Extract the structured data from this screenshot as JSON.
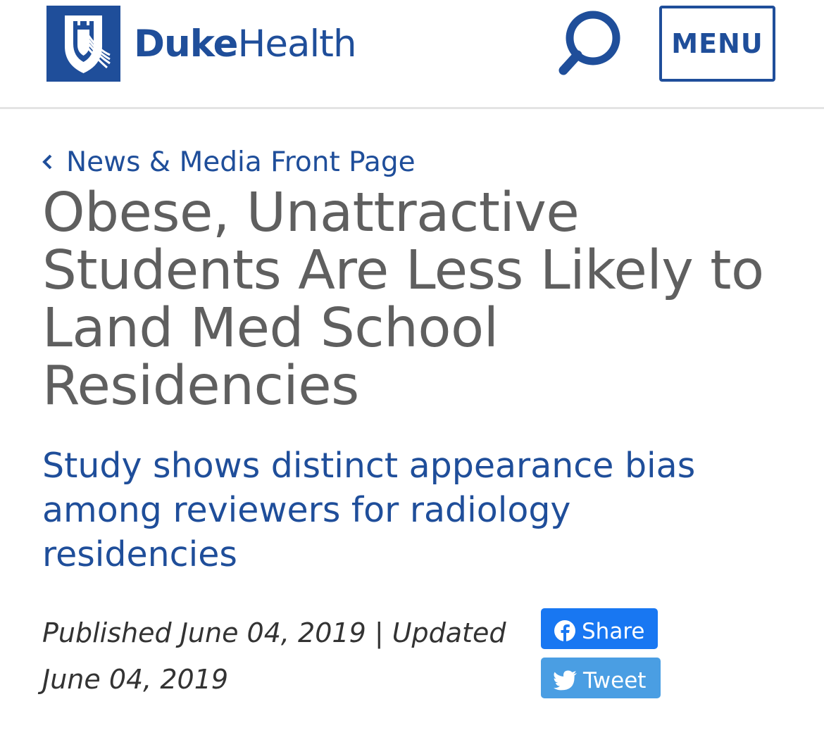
{
  "header": {
    "logo_bold": "Duke",
    "logo_light": "Health",
    "menu_label": "MENU",
    "brand_color": "#1f4e9a"
  },
  "breadcrumb": {
    "label": "News & Media Front Page"
  },
  "article": {
    "title": "Obese, Unattractive Students Are Less Likely to Land Med School Residencies",
    "subtitle": "Study shows distinct appearance bias among reviewers for radiology residencies",
    "published": "Published June 04, 2019 | Updated June 04, 2019"
  },
  "social": {
    "share_label": "Share",
    "tweet_label": "Tweet",
    "share_color": "#1877f2",
    "tweet_color": "#4a9ee3"
  },
  "icons": {
    "logo": "duke-chapel-shield-icon",
    "search": "magnifier-icon",
    "back": "chevron-left-icon",
    "facebook": "facebook-icon",
    "twitter": "twitter-bird-icon"
  }
}
